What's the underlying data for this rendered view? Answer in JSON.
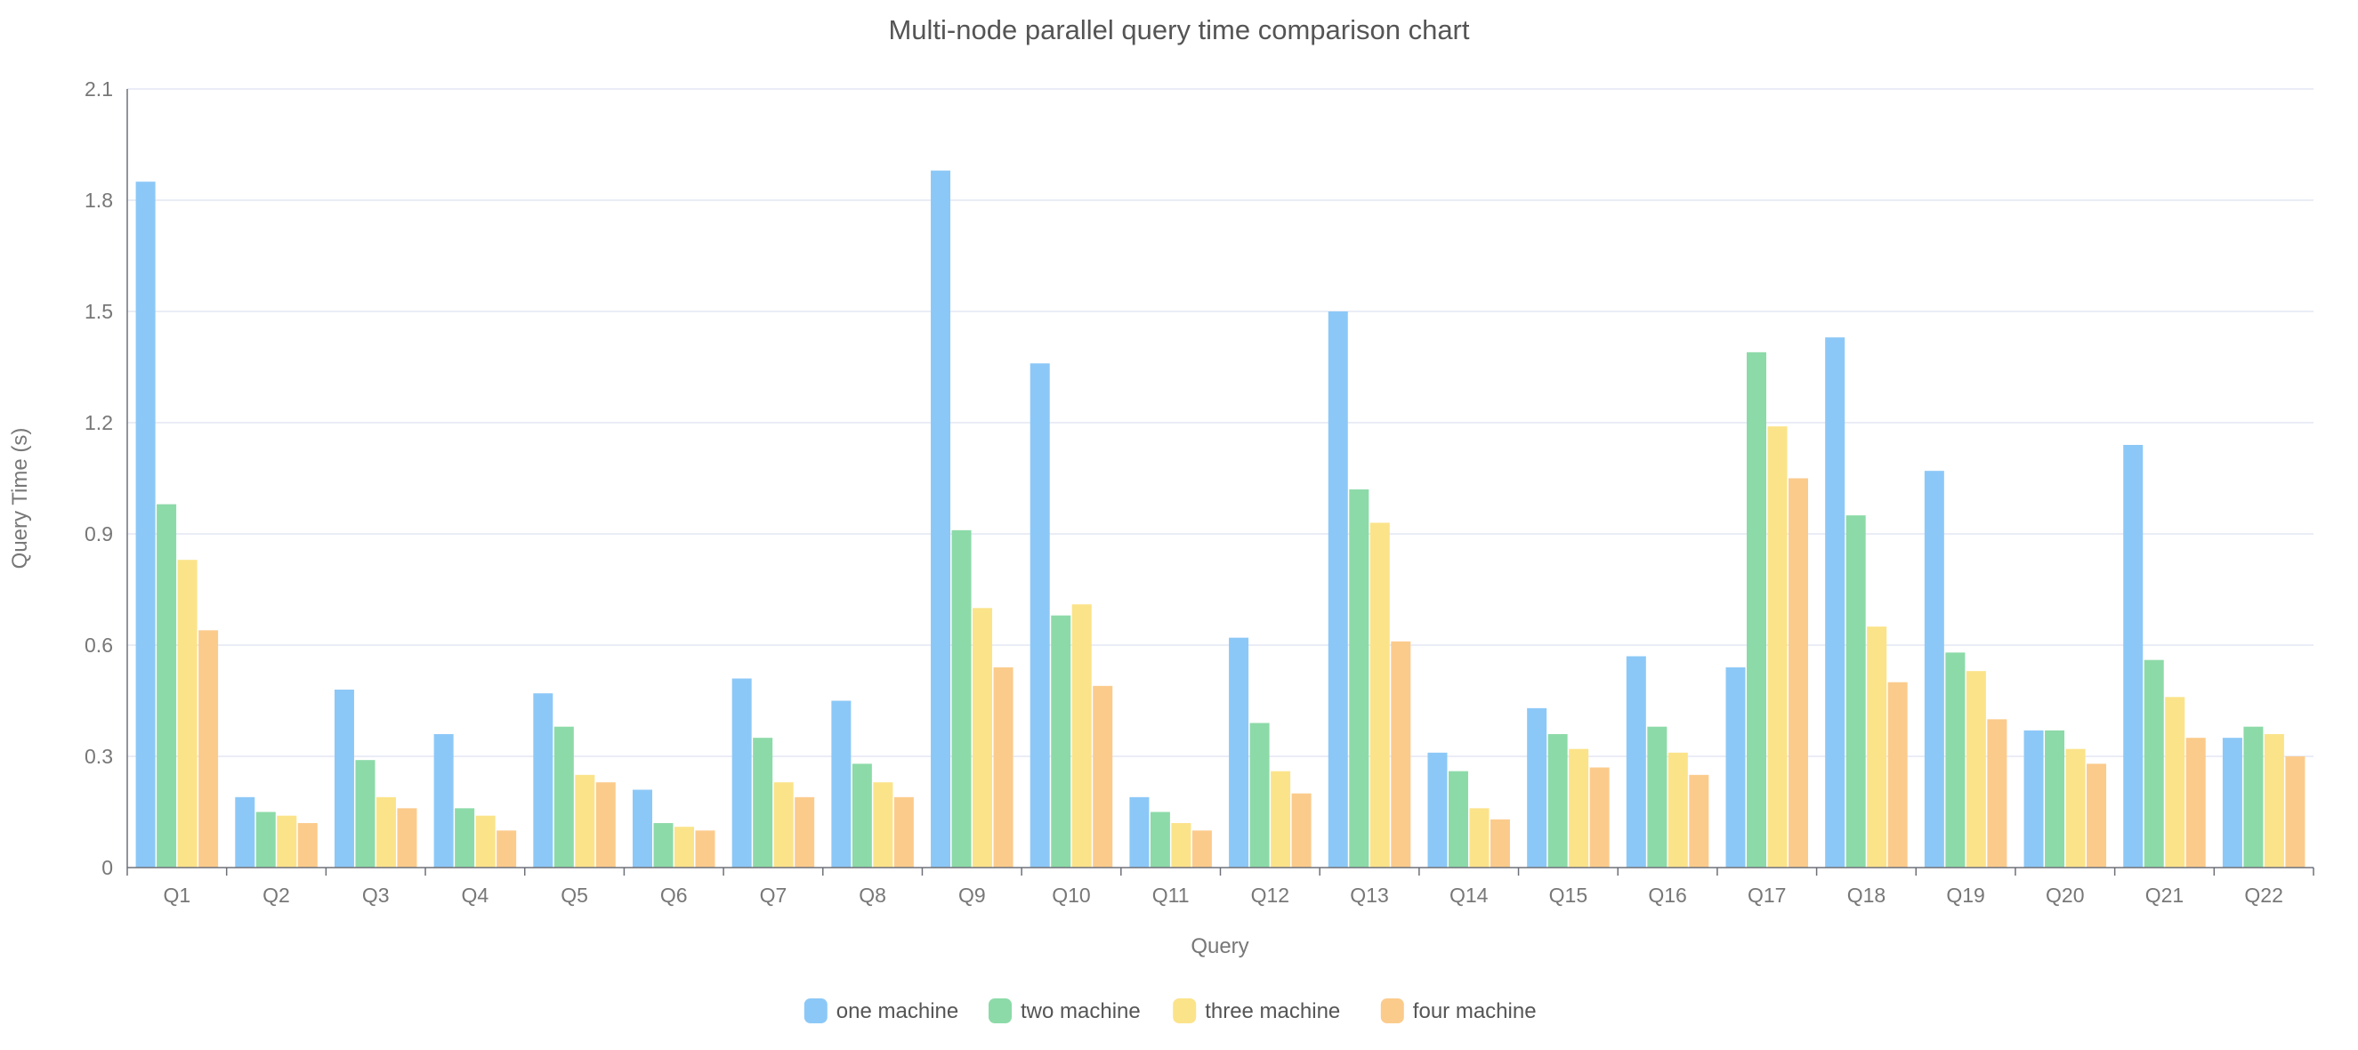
{
  "chart_data": {
    "type": "bar",
    "title": "Multi-node parallel query time comparison chart",
    "xlabel": "Query",
    "ylabel": "Query Time (s)",
    "ylim": [
      0,
      2.1
    ],
    "yticks": [
      0,
      0.3,
      0.6,
      0.9,
      1.2,
      1.5,
      1.8,
      2.1
    ],
    "ytick_labels": [
      "0",
      "0.3",
      "0.6",
      "0.9",
      "1.2",
      "1.5",
      "1.8",
      "2.1"
    ],
    "grid": true,
    "legend_position": "bottom-center",
    "categories": [
      "Q1",
      "Q2",
      "Q3",
      "Q4",
      "Q5",
      "Q6",
      "Q7",
      "Q8",
      "Q9",
      "Q10",
      "Q11",
      "Q12",
      "Q13",
      "Q14",
      "Q15",
      "Q16",
      "Q17",
      "Q18",
      "Q19",
      "Q20",
      "Q21",
      "Q22"
    ],
    "series": [
      {
        "name": "one machine",
        "color": "#8cc8f7",
        "values": [
          1.85,
          0.19,
          0.48,
          0.36,
          0.47,
          0.21,
          0.51,
          0.45,
          1.88,
          1.36,
          0.19,
          0.62,
          1.5,
          0.31,
          0.43,
          0.57,
          0.54,
          1.43,
          1.07,
          0.37,
          1.14,
          0.35
        ]
      },
      {
        "name": "two machine",
        "color": "#8cdaa8",
        "values": [
          0.98,
          0.15,
          0.29,
          0.16,
          0.38,
          0.12,
          0.35,
          0.28,
          0.91,
          0.68,
          0.15,
          0.39,
          1.02,
          0.26,
          0.36,
          0.38,
          1.39,
          0.95,
          0.58,
          0.37,
          0.56,
          0.38
        ]
      },
      {
        "name": "three machine",
        "color": "#fbe38a",
        "values": [
          0.83,
          0.14,
          0.19,
          0.14,
          0.25,
          0.11,
          0.23,
          0.23,
          0.7,
          0.71,
          0.12,
          0.26,
          0.93,
          0.16,
          0.32,
          0.31,
          1.19,
          0.65,
          0.53,
          0.32,
          0.46,
          0.36
        ]
      },
      {
        "name": "four machine",
        "color": "#fbcb8c",
        "values": [
          0.64,
          0.12,
          0.16,
          0.1,
          0.23,
          0.1,
          0.19,
          0.19,
          0.54,
          0.49,
          0.1,
          0.2,
          0.61,
          0.13,
          0.27,
          0.25,
          1.05,
          0.5,
          0.4,
          0.28,
          0.35,
          0.3
        ]
      }
    ]
  }
}
